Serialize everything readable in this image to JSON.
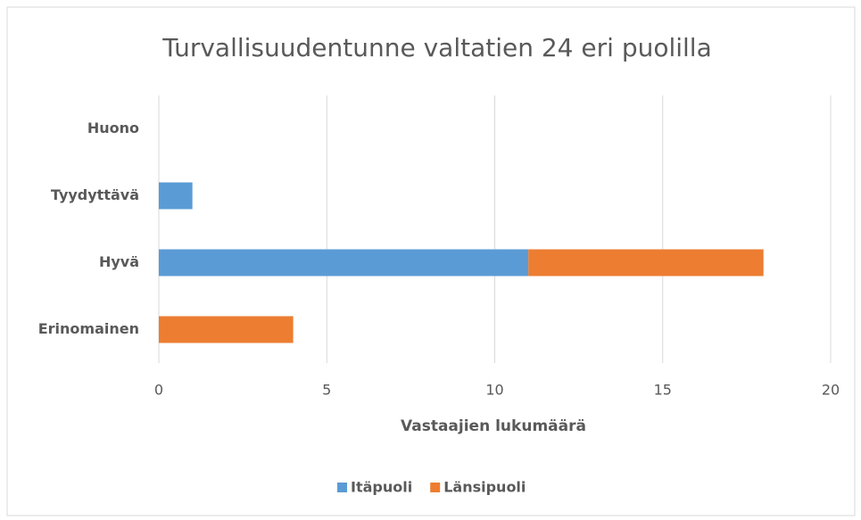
{
  "chart_data": {
    "type": "stacked_barh",
    "title": "Turvallisuudentunne valtatien 24 eri puolilla",
    "xlabel": "Vastaajien lukumäärä",
    "categories": [
      "Huono",
      "Tyydyttävä",
      "Hyvä",
      "Erinomainen"
    ],
    "series": [
      {
        "name": "Itäpuoli",
        "color": "#5b9bd5",
        "values": [
          0,
          1,
          11,
          0
        ]
      },
      {
        "name": "Länsipuoli",
        "color": "#ed7d31",
        "values": [
          0,
          0,
          7,
          4
        ]
      }
    ],
    "xlim": [
      0,
      20
    ],
    "xticks": [
      0,
      5,
      10,
      15,
      20
    ],
    "grid": true,
    "legend": "bottom"
  }
}
